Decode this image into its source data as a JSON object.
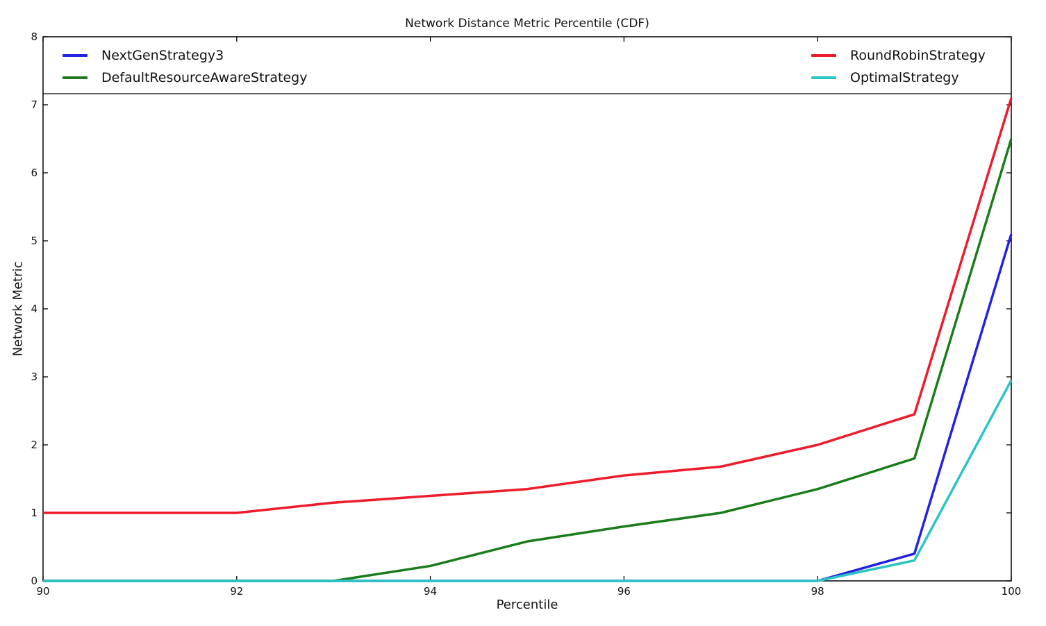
{
  "chart_data": {
    "type": "line",
    "title": "Network Distance Metric Percentile (CDF)",
    "xlabel": "Percentile",
    "ylabel": "Network Metric",
    "xlim": [
      90,
      100
    ],
    "ylim": [
      0,
      8
    ],
    "xticks": [
      90,
      92,
      94,
      96,
      98,
      100
    ],
    "yticks": [
      0,
      1,
      2,
      3,
      4,
      5,
      6,
      7,
      8
    ],
    "grid": false,
    "legend_position": "full-width band inside top of plot, two columns",
    "x": [
      90,
      91,
      92,
      93,
      94,
      95,
      96,
      97,
      98,
      99,
      100
    ],
    "series": [
      {
        "name": "NextGenStrategy3",
        "color": "#2222e0",
        "values": [
          0,
          0,
          0,
          0,
          0,
          0,
          0,
          0,
          0,
          0.4,
          5.1
        ]
      },
      {
        "name": "DefaultResourceAwareStrategy",
        "color": "#1a7c1a",
        "values": [
          0,
          0,
          0,
          0,
          0.22,
          0.58,
          0.8,
          1.0,
          1.35,
          1.8,
          6.5
        ]
      },
      {
        "name": "RoundRobinStrategy",
        "color": "#ee1b2c",
        "values": [
          1.0,
          1.0,
          1.0,
          1.15,
          1.25,
          1.35,
          1.55,
          1.68,
          2.0,
          2.45,
          7.1
        ]
      },
      {
        "name": "OptimalStrategy",
        "color": "#2bc4c4",
        "values": [
          0,
          0,
          0,
          0,
          0,
          0,
          0,
          0,
          0,
          0.3,
          2.95
        ]
      }
    ]
  }
}
